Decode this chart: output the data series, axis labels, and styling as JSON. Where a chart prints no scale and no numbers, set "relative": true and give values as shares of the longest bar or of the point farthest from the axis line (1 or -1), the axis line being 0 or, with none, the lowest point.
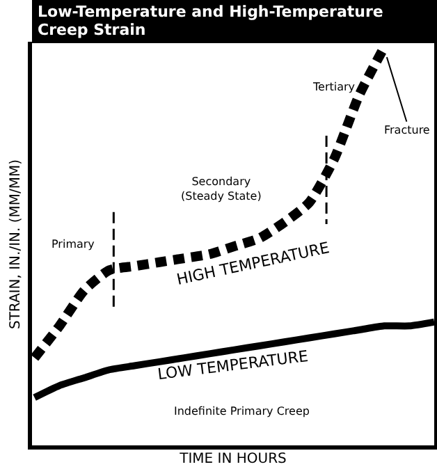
{
  "chart_data": {
    "type": "line",
    "title": "Low-Temperature and High-Temperature\nCreep Strain",
    "xlabel": "TIME IN HOURS",
    "ylabel": "STRAIN, IN./IN. (MM/MM)",
    "relative": true,
    "legend": false,
    "tick_labels": false,
    "marker": "none",
    "categories": [
      null,
      null,
      null,
      null,
      null,
      null,
      null,
      null,
      null,
      null,
      null,
      null,
      null,
      null,
      null,
      null,
      null
    ],
    "series": [
      {
        "name": "HIGH TEMPERATURE",
        "color": "#000000",
        "line_style": "dashed",
        "values": [
          0.22,
          0.3,
          0.39,
          0.44,
          0.45,
          0.46,
          0.47,
          0.48,
          0.5,
          0.52,
          0.56,
          0.61,
          0.72,
          0.88,
          1.0,
          null,
          null
        ]
      },
      {
        "name": "LOW TEMPERATURE",
        "color": "#000000",
        "line_style": "solid",
        "values": [
          0.12,
          0.15,
          0.17,
          0.19,
          0.2,
          0.21,
          0.22,
          0.23,
          0.24,
          0.25,
          0.26,
          0.27,
          0.28,
          0.29,
          0.3,
          0.3,
          0.31
        ]
      }
    ],
    "annotations": [
      "Primary",
      "Secondary\n(Steady State)",
      "Tertiary",
      "Fracture",
      "Indefinite Primary Creep"
    ]
  }
}
